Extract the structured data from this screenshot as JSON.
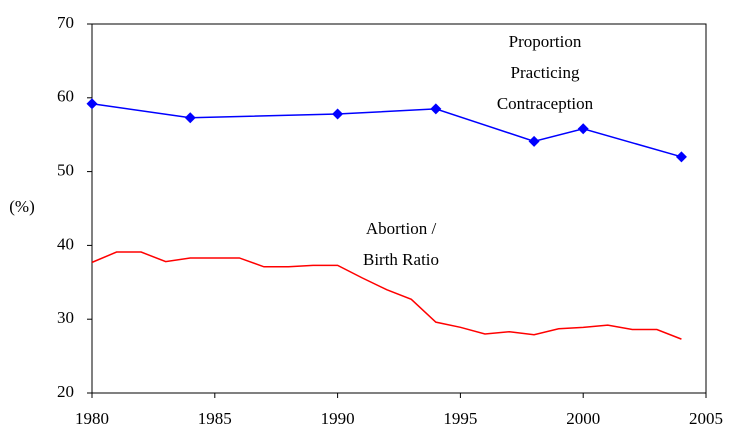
{
  "chart_data": {
    "type": "line",
    "y_label": "(%)",
    "xlim": [
      1980,
      2005
    ],
    "xticks": [
      1980,
      1985,
      1990,
      1995,
      2000,
      2005
    ],
    "ylim": [
      20,
      70
    ],
    "yticks": [
      20,
      30,
      40,
      50,
      60,
      70
    ],
    "grid": false,
    "series": [
      {
        "color": "#0000ff",
        "marker": "diamond",
        "x": [
          1980,
          1984,
          1990,
          1994,
          1998,
          2000,
          2004
        ],
        "values": [
          59.2,
          57.3,
          57.8,
          58.5,
          54.1,
          55.8,
          52.0
        ]
      },
      {
        "color": "#ff0000",
        "marker": "none",
        "x": [
          1980,
          1981,
          1982,
          1983,
          1984,
          1985,
          1986,
          1987,
          1988,
          1989,
          1990,
          1991,
          1992,
          1993,
          1994,
          1995,
          1996,
          1997,
          1998,
          1999,
          2000,
          2001,
          2002,
          2003,
          2004
        ],
        "values": [
          37.7,
          39.1,
          39.1,
          37.8,
          38.3,
          38.3,
          38.3,
          37.1,
          37.1,
          37.3,
          37.3,
          35.6,
          34.0,
          32.7,
          29.6,
          28.9,
          28.0,
          28.3,
          27.9,
          28.7,
          28.9,
          29.2,
          28.6,
          28.6,
          27.3
        ]
      }
    ],
    "annotations": [
      {
        "lines": [
          "Proportion",
          "Practicing",
          "Contraception"
        ]
      },
      {
        "lines": [
          "Abortion /",
          "Birth Ratio"
        ]
      }
    ]
  }
}
